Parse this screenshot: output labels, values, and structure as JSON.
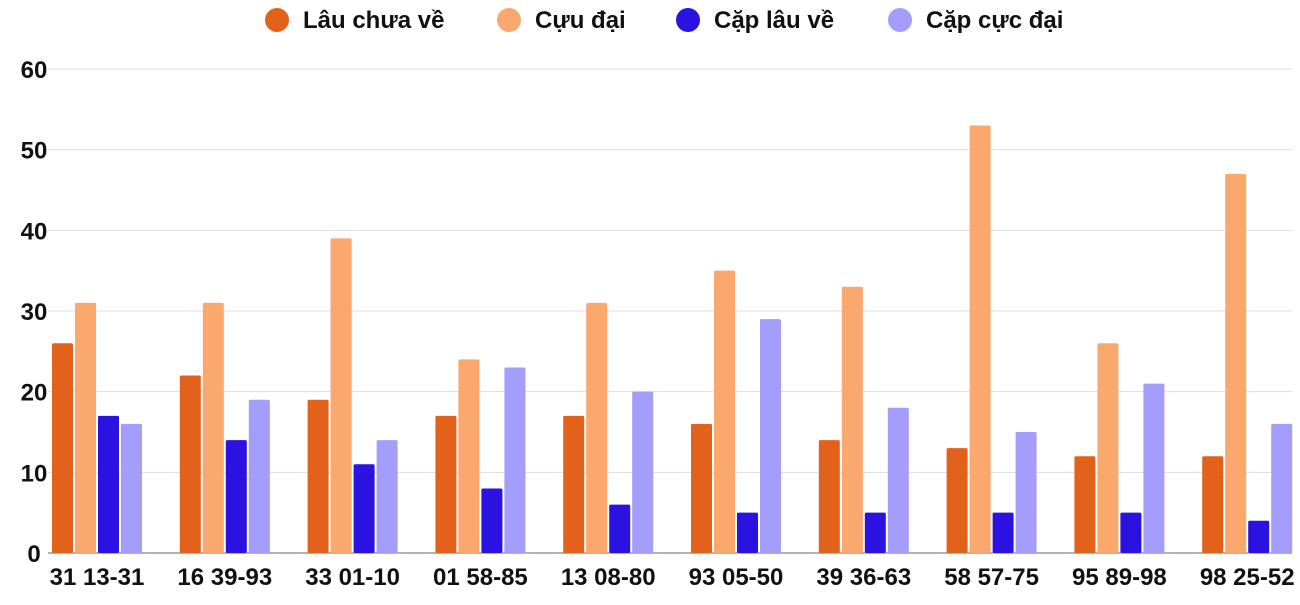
{
  "chart_data": {
    "type": "bar",
    "title": "",
    "xlabel": "",
    "ylabel": "",
    "ylim": [
      0,
      60
    ],
    "yticks": [
      0,
      10,
      20,
      30,
      40,
      50,
      60
    ],
    "grid": true,
    "legend_position": "top-center",
    "categories": [
      "31 13-31",
      "16 39-93",
      "33 01-10",
      "01 58-85",
      "13 08-80",
      "93 05-50",
      "39 36-63",
      "58 57-75",
      "95 89-98",
      "98 25-52"
    ],
    "series": [
      {
        "name": "Lâu chưa về",
        "color": "#e2621b",
        "values": [
          26,
          22,
          19,
          17,
          17,
          16,
          14,
          13,
          12,
          12
        ]
      },
      {
        "name": "Cựu đại",
        "color": "#fba86f",
        "values": [
          31,
          31,
          39,
          24,
          31,
          35,
          33,
          53,
          26,
          47
        ]
      },
      {
        "name": "Cặp lâu về",
        "color": "#2b12e0",
        "values": [
          17,
          14,
          11,
          8,
          6,
          5,
          5,
          5,
          5,
          4
        ]
      },
      {
        "name": "Cặp cực đại",
        "color": "#a49dfb",
        "values": [
          16,
          19,
          14,
          23,
          20,
          29,
          18,
          15,
          21,
          16
        ]
      }
    ]
  }
}
